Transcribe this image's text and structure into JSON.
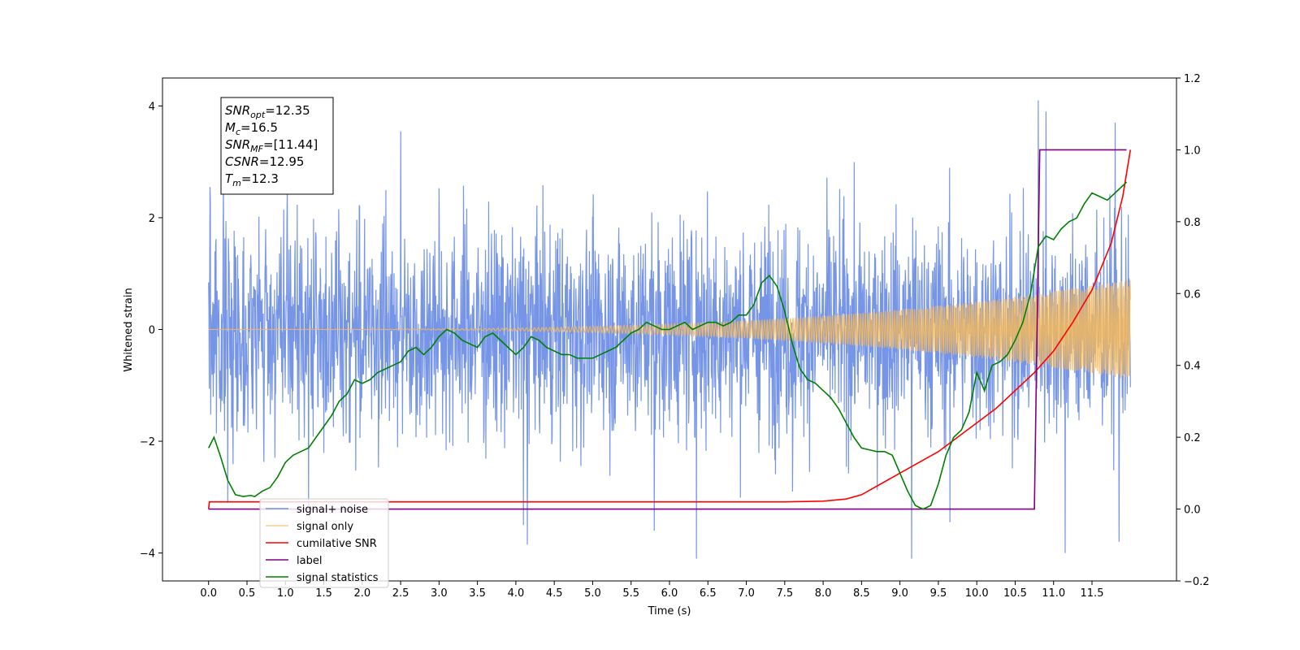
{
  "chart_data": {
    "type": "line",
    "title": "",
    "xlabel": "Time (s)",
    "ylabel": "Whitened strain",
    "xlim": [
      -0.6,
      12.6
    ],
    "ylim": [
      -4.5,
      4.5
    ],
    "y2lim": [
      -0.2,
      1.2
    ],
    "x_ticks": [
      "0.0",
      "0.5",
      "1.0",
      "1.5",
      "2.0",
      "2.5",
      "3.0",
      "3.5",
      "4.0",
      "4.5",
      "5.0",
      "5.5",
      "6.0",
      "6.5",
      "7.0",
      "7.5",
      "8.0",
      "8.5",
      "9.0",
      "9.5",
      "10.0",
      "10.5",
      "11.0",
      "11.5"
    ],
    "y_ticks": [
      "4",
      "2",
      "0",
      "−2",
      "−4"
    ],
    "y2_ticks": [
      "1.2",
      "1.0",
      "0.8",
      "0.6",
      "0.4",
      "0.2",
      "0.0",
      "−0.2"
    ],
    "grid": false,
    "legend_position": "bottom-left",
    "annotation": {
      "lines": [
        {
          "base": "SNR",
          "sub": "opt",
          "value": "=12.35"
        },
        {
          "base": "M",
          "sub": "c",
          "value": "=16.5"
        },
        {
          "base": "SNR",
          "sub": "MF",
          "value": "=[11.44]"
        },
        {
          "base": "CSNR",
          "sub": "",
          "value": "=12.95"
        },
        {
          "base": "T",
          "sub": "m",
          "value": "=12.3"
        }
      ]
    },
    "series": [
      {
        "name": "signal+ noise",
        "axis": "left",
        "color": "#6f8fe6",
        "kind": "noise",
        "x_range": [
          0.0,
          12.0
        ],
        "approx_std": 0.95,
        "peaks": [
          [
            0.02,
            2.55
          ],
          [
            0.25,
            -3.1
          ],
          [
            1.3,
            -3.15
          ],
          [
            2.5,
            3.55
          ],
          [
            4.1,
            -3.5
          ],
          [
            4.15,
            -3.85
          ],
          [
            5.8,
            -3.6
          ],
          [
            6.35,
            -4.1
          ],
          [
            7.6,
            -2.9
          ],
          [
            9.15,
            -4.1
          ],
          [
            9.65,
            -3.45
          ],
          [
            10.8,
            4.1
          ],
          [
            10.9,
            3.9
          ],
          [
            11.15,
            -4.0
          ],
          [
            11.8,
            3.7
          ],
          [
            11.85,
            -3.8
          ]
        ]
      },
      {
        "name": "signal only",
        "axis": "left",
        "color": "#f5b85a",
        "kind": "chirp",
        "x_range": [
          0.0,
          12.0
        ],
        "amplitude_start": 0.0,
        "amplitude_end": 0.9
      },
      {
        "name": "cumilative SNR",
        "axis": "right",
        "color": "#ff0000",
        "x": [
          0.0,
          0.01,
          1.0,
          2.0,
          3.0,
          4.0,
          5.0,
          6.0,
          7.0,
          7.5,
          8.0,
          8.3,
          8.5,
          8.75,
          9.0,
          9.25,
          9.5,
          9.75,
          10.0,
          10.25,
          10.5,
          10.75,
          11.0,
          11.25,
          11.5,
          11.75,
          11.9,
          12.0
        ],
        "y": [
          0.0,
          0.02,
          0.02,
          0.02,
          0.02,
          0.02,
          0.02,
          0.02,
          0.02,
          0.02,
          0.022,
          0.028,
          0.04,
          0.07,
          0.1,
          0.13,
          0.16,
          0.2,
          0.24,
          0.28,
          0.33,
          0.38,
          0.44,
          0.52,
          0.61,
          0.74,
          0.87,
          1.0
        ]
      },
      {
        "name": "label",
        "axis": "right",
        "color": "#800080",
        "x": [
          0.0,
          10.75,
          10.82,
          11.95
        ],
        "y": [
          0.0,
          0.0,
          1.0,
          1.0
        ]
      },
      {
        "name": "signal statistics",
        "axis": "right",
        "color": "#008000",
        "x": [
          0.0,
          0.07,
          0.15,
          0.25,
          0.35,
          0.45,
          0.55,
          0.6,
          0.7,
          0.8,
          0.9,
          1.0,
          1.1,
          1.2,
          1.3,
          1.4,
          1.5,
          1.6,
          1.7,
          1.8,
          1.9,
          2.0,
          2.1,
          2.2,
          2.3,
          2.4,
          2.5,
          2.6,
          2.7,
          2.8,
          2.9,
          3.0,
          3.1,
          3.2,
          3.3,
          3.4,
          3.5,
          3.6,
          3.7,
          3.8,
          3.9,
          4.0,
          4.1,
          4.2,
          4.3,
          4.4,
          4.5,
          4.6,
          4.7,
          4.8,
          4.9,
          5.0,
          5.1,
          5.2,
          5.3,
          5.4,
          5.5,
          5.6,
          5.7,
          5.8,
          5.9,
          6.0,
          6.1,
          6.2,
          6.3,
          6.4,
          6.5,
          6.6,
          6.7,
          6.8,
          6.9,
          7.0,
          7.1,
          7.2,
          7.3,
          7.4,
          7.5,
          7.6,
          7.7,
          7.8,
          7.9,
          8.0,
          8.1,
          8.2,
          8.3,
          8.4,
          8.5,
          8.6,
          8.7,
          8.8,
          8.9,
          9.0,
          9.1,
          9.2,
          9.3,
          9.4,
          9.5,
          9.6,
          9.7,
          9.8,
          9.9,
          10.0,
          10.1,
          10.2,
          10.3,
          10.4,
          10.5,
          10.6,
          10.7,
          10.8,
          10.9,
          11.0,
          11.1,
          11.2,
          11.3,
          11.4,
          11.5,
          11.6,
          11.7,
          11.8,
          11.9,
          11.95
        ],
        "y": [
          0.17,
          0.2,
          0.15,
          0.08,
          0.04,
          0.035,
          0.038,
          0.035,
          0.05,
          0.06,
          0.09,
          0.13,
          0.15,
          0.16,
          0.17,
          0.2,
          0.23,
          0.26,
          0.3,
          0.32,
          0.36,
          0.35,
          0.36,
          0.38,
          0.39,
          0.4,
          0.41,
          0.44,
          0.45,
          0.43,
          0.45,
          0.48,
          0.5,
          0.49,
          0.47,
          0.46,
          0.45,
          0.48,
          0.49,
          0.47,
          0.45,
          0.43,
          0.45,
          0.48,
          0.47,
          0.45,
          0.44,
          0.43,
          0.43,
          0.42,
          0.42,
          0.42,
          0.43,
          0.44,
          0.45,
          0.47,
          0.49,
          0.5,
          0.52,
          0.51,
          0.5,
          0.5,
          0.51,
          0.52,
          0.5,
          0.51,
          0.52,
          0.52,
          0.51,
          0.52,
          0.54,
          0.54,
          0.57,
          0.63,
          0.65,
          0.62,
          0.55,
          0.46,
          0.39,
          0.36,
          0.35,
          0.33,
          0.31,
          0.28,
          0.24,
          0.2,
          0.17,
          0.165,
          0.16,
          0.16,
          0.15,
          0.1,
          0.05,
          0.01,
          0.0,
          0.01,
          0.07,
          0.15,
          0.2,
          0.22,
          0.27,
          0.38,
          0.33,
          0.4,
          0.41,
          0.43,
          0.47,
          0.52,
          0.6,
          0.73,
          0.76,
          0.75,
          0.78,
          0.8,
          0.81,
          0.85,
          0.88,
          0.87,
          0.86,
          0.88,
          0.9,
          0.91
        ]
      }
    ]
  }
}
